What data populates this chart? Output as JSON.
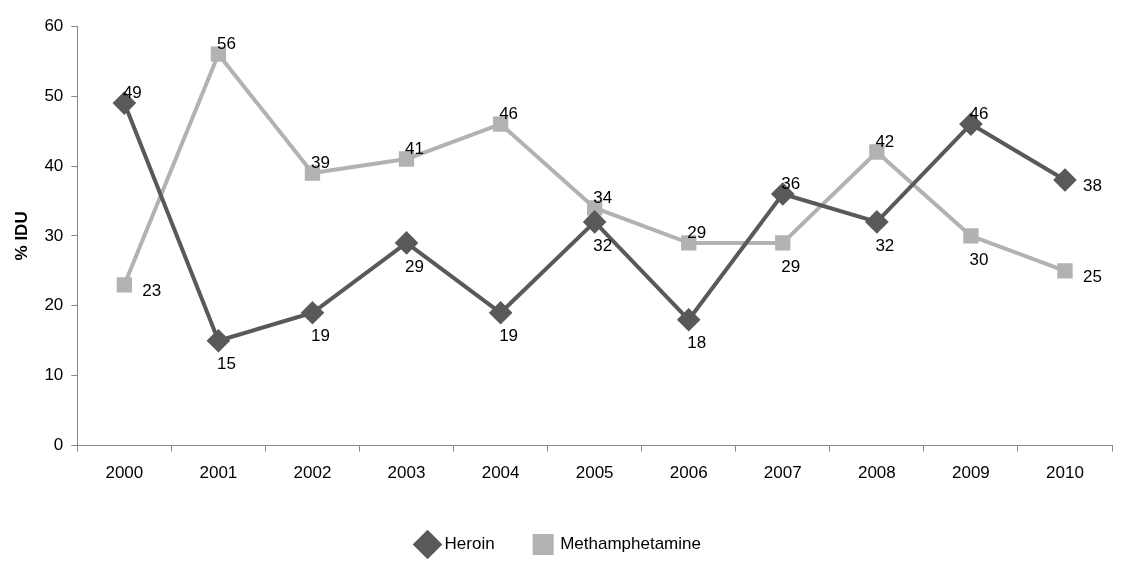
{
  "chart_data": {
    "type": "line",
    "ylabel": "% IDU",
    "categories": [
      "2000",
      "2001",
      "2002",
      "2003",
      "2004",
      "2005",
      "2006",
      "2007",
      "2008",
      "2009",
      "2010"
    ],
    "series": [
      {
        "name": "Heroin",
        "color": "#595959",
        "marker": "diamond",
        "values": [
          49,
          15,
          19,
          29,
          19,
          32,
          18,
          36,
          32,
          46,
          38
        ]
      },
      {
        "name": "Methamphetamine",
        "color": "#b2b2b2",
        "marker": "square",
        "values": [
          23,
          56,
          39,
          41,
          46,
          34,
          29,
          29,
          42,
          30,
          25
        ]
      }
    ],
    "ylim": [
      0,
      60
    ],
    "yticks": [
      0,
      10,
      20,
      30,
      40,
      50,
      60
    ],
    "grid": false,
    "legend": "bottom",
    "data_labels": true,
    "line_style": "solid"
  }
}
